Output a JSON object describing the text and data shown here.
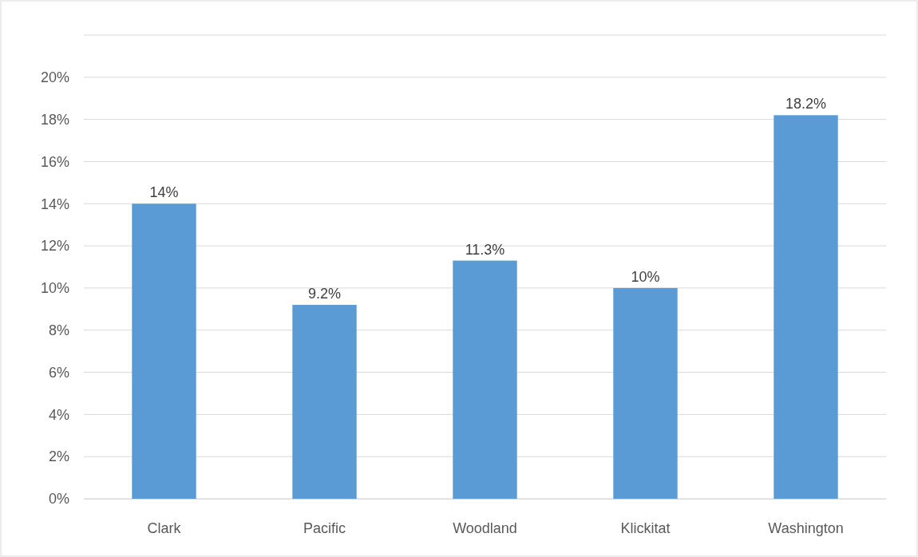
{
  "chart_data": {
    "type": "bar",
    "categories": [
      "Clark",
      "Pacific",
      "Woodland",
      "Klickitat",
      "Washington"
    ],
    "values": [
      14,
      9.2,
      11.3,
      10,
      18.2
    ],
    "value_labels": [
      "14%",
      "9.2%",
      "11.3%",
      "10%",
      "18.2%"
    ],
    "color": "#5b9bd5",
    "ylim": [
      0,
      22
    ],
    "yticks": [
      {
        "value": 0,
        "label": "0%"
      },
      {
        "value": 2,
        "label": "2%"
      },
      {
        "value": 4,
        "label": "4%"
      },
      {
        "value": 6,
        "label": "6%"
      },
      {
        "value": 8,
        "label": "8%"
      },
      {
        "value": 10,
        "label": "10%"
      },
      {
        "value": 12,
        "label": "12%"
      },
      {
        "value": 14,
        "label": "14%"
      },
      {
        "value": 16,
        "label": "16%"
      },
      {
        "value": 18,
        "label": "18%"
      },
      {
        "value": 20,
        "label": "20%"
      },
      {
        "value": 22,
        "label": null
      }
    ],
    "grid": "y"
  }
}
